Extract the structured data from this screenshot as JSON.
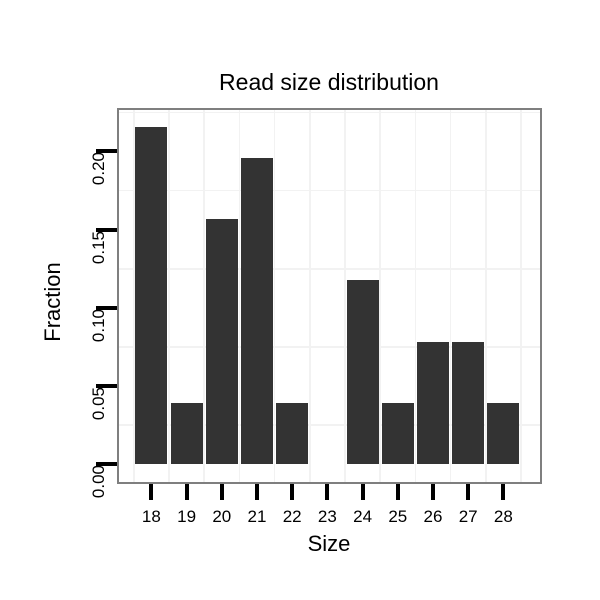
{
  "chart_data": {
    "type": "bar",
    "title": "Read size distribution",
    "xlabel": "Size",
    "ylabel": "Fraction",
    "categories": [
      18,
      19,
      20,
      21,
      22,
      23,
      24,
      25,
      26,
      27,
      28
    ],
    "values": [
      0.2157,
      0.0392,
      0.1569,
      0.1961,
      0.0392,
      0,
      0.1176,
      0.0392,
      0.0784,
      0.0784,
      0.0392
    ],
    "x_tick_labels": [
      "18",
      "19",
      "20",
      "21",
      "22",
      "23",
      "24",
      "25",
      "26",
      "27",
      "28"
    ],
    "y_ticks": [
      0.0,
      0.05,
      0.1,
      0.15,
      0.2
    ],
    "y_tick_labels": [
      "0.00",
      "0.05",
      "0.10",
      "0.15",
      "0.20"
    ],
    "xlim": [
      17.08,
      29.04
    ],
    "ylim": [
      -0.0113,
      0.2265
    ],
    "x_minor_gridlines": [
      17.5,
      18.5,
      19.5,
      20.5,
      21.5,
      22.5,
      23.5,
      24.5,
      25.5,
      26.5,
      27.5,
      28.5
    ],
    "y_minor_gridlines": [
      0.025,
      0.075,
      0.125,
      0.175,
      0.225
    ],
    "bar_width_units": 0.91,
    "grid": "minor-only",
    "legend": "none",
    "colors": {
      "bar_fill": "#333333",
      "panel_border": "#7f7f7f",
      "grid_minor": "#f2f2f2",
      "tick": "#000000",
      "text": "#000000",
      "background": "#ffffff"
    }
  }
}
